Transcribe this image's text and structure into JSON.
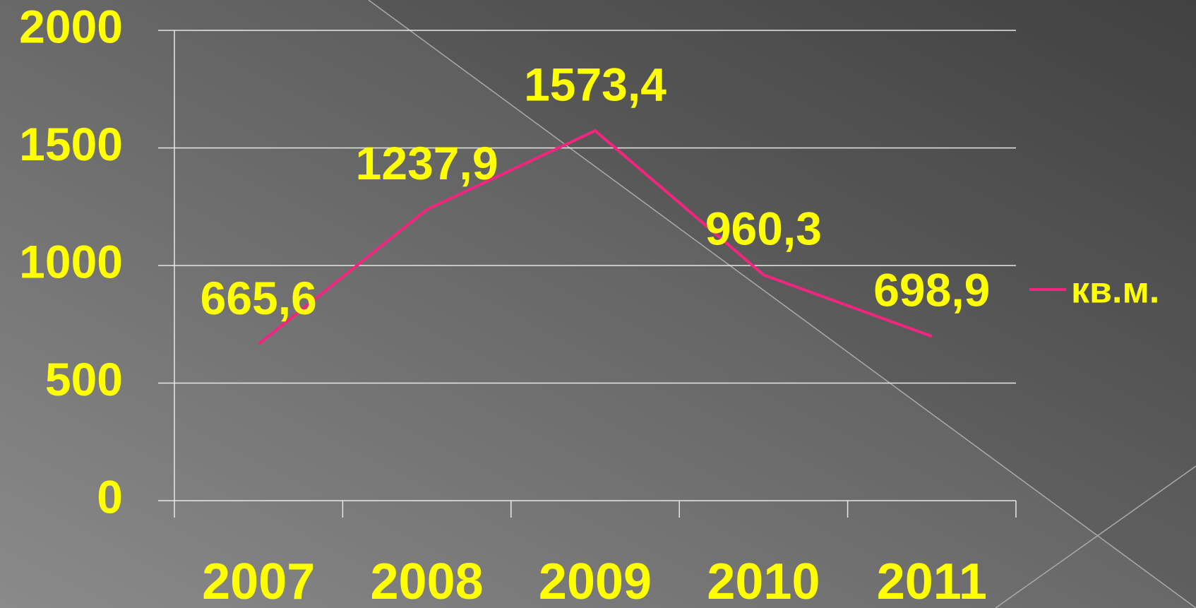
{
  "chart_data": {
    "type": "line",
    "categories": [
      "2007",
      "2008",
      "2009",
      "2010",
      "2011"
    ],
    "series": [
      {
        "name": "кв.м.",
        "color": "#f5257f",
        "values": [
          665.6,
          1237.9,
          1573.4,
          960.3,
          698.9
        ],
        "value_labels": [
          "665,6",
          "1237,9",
          "1573,4",
          "960,3",
          "698,9"
        ]
      }
    ],
    "ylim": [
      0,
      2000
    ],
    "yticks": [
      0,
      500,
      1000,
      1500,
      2000
    ],
    "grid": true,
    "legend": "right"
  }
}
